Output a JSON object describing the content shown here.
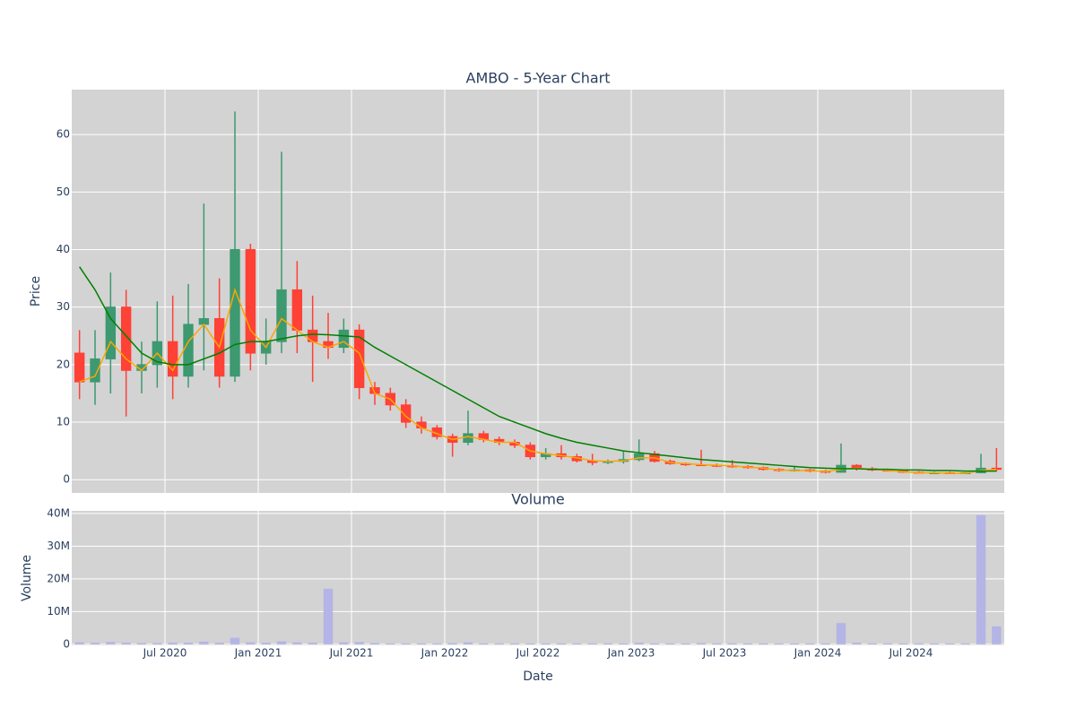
{
  "chart_data": [
    {
      "type": "candlestick",
      "title": "AMBO - 5-Year Chart",
      "y_label": "Price",
      "x": [
        "2020-01",
        "2020-02",
        "2020-03",
        "2020-04",
        "2020-05",
        "2020-06",
        "2020-07",
        "2020-08",
        "2020-09",
        "2020-10",
        "2020-11",
        "2020-12",
        "2021-01",
        "2021-02",
        "2021-03",
        "2021-04",
        "2021-05",
        "2021-06",
        "2021-07",
        "2021-08",
        "2021-09",
        "2021-10",
        "2021-11",
        "2021-12",
        "2022-01",
        "2022-02",
        "2022-03",
        "2022-04",
        "2022-05",
        "2022-06",
        "2022-07",
        "2022-08",
        "2022-09",
        "2022-10",
        "2022-11",
        "2022-12",
        "2023-01",
        "2023-02",
        "2023-03",
        "2023-04",
        "2023-05",
        "2023-06",
        "2023-07",
        "2023-08",
        "2023-09",
        "2023-10",
        "2023-11",
        "2023-12",
        "2024-01",
        "2024-02",
        "2024-03",
        "2024-04",
        "2024-05",
        "2024-06",
        "2024-07",
        "2024-08",
        "2024-09",
        "2024-10",
        "2024-11",
        "2024-12"
      ],
      "open": [
        22,
        17,
        21,
        30,
        19,
        20,
        24,
        18,
        27,
        28,
        18,
        40,
        22,
        24,
        33,
        26,
        24,
        23,
        26,
        16,
        15,
        13,
        10,
        9,
        7.5,
        6.5,
        8,
        7,
        6.5,
        6,
        4,
        4.5,
        4,
        3.3,
        3,
        3.2,
        3.5,
        4.5,
        3.2,
        2.8,
        2.6,
        2.5,
        2.4,
        2.3,
        2.1,
        1.8,
        1.6,
        1.7,
        1.5,
        1.3,
        2.5,
        1.9,
        1.7,
        1.5,
        1.3,
        1.2,
        1.2,
        1.1,
        1.2,
        2
      ],
      "high": [
        26,
        26,
        36,
        33,
        24,
        31,
        32,
        34,
        48,
        35,
        64,
        41,
        28,
        57,
        38,
        32,
        29,
        28,
        27,
        17,
        16,
        14,
        11,
        9.5,
        8,
        12,
        8.5,
        7.5,
        7,
        6.5,
        5.5,
        6,
        4.5,
        4.5,
        3.5,
        5,
        7,
        5,
        3.5,
        3,
        5.2,
        2.8,
        3.4,
        2.5,
        2.3,
        2,
        2.4,
        1.9,
        1.7,
        6.3,
        2.7,
        2.2,
        1.9,
        1.7,
        1.5,
        1.4,
        1.4,
        1.3,
        4.5,
        5.5
      ],
      "low": [
        14,
        13,
        15,
        11,
        15,
        16,
        14,
        16,
        19,
        16,
        17,
        19,
        20,
        22,
        22,
        17,
        21,
        22,
        14,
        13,
        12,
        9,
        8,
        7,
        4,
        6,
        6.5,
        6,
        5.5,
        3.5,
        3.5,
        3.5,
        3,
        2.5,
        2.7,
        2.8,
        3.2,
        3,
        2.6,
        2.4,
        2.4,
        2.2,
        2.1,
        1.9,
        1.6,
        1.4,
        1.4,
        1.3,
        1.1,
        1.2,
        1.6,
        1.5,
        1.4,
        1.2,
        1.1,
        1,
        1,
        1,
        1.2,
        1.4
      ],
      "close": [
        17,
        21,
        30,
        19,
        20,
        24,
        18,
        27,
        28,
        18,
        40,
        22,
        24,
        33,
        26,
        24,
        23,
        26,
        16,
        15,
        13,
        10,
        9,
        7.5,
        6.5,
        8,
        7,
        6.5,
        6,
        4,
        4.5,
        4,
        3.3,
        3,
        3.2,
        3.5,
        4.5,
        3.2,
        2.8,
        2.6,
        2.5,
        2.4,
        2.3,
        2.1,
        1.8,
        1.6,
        1.7,
        1.5,
        1.3,
        2.5,
        1.9,
        1.7,
        1.5,
        1.3,
        1.2,
        1.2,
        1.1,
        1.2,
        2,
        1.8
      ],
      "increasing_color": "#3d9970",
      "decreasing_color": "#ff4136",
      "lines": [
        {
          "color": "#ffa500",
          "values": [
            17,
            18,
            24,
            21,
            19,
            22,
            19,
            24,
            27,
            23,
            33,
            26,
            23,
            28,
            26,
            24,
            23,
            24,
            22,
            15,
            14,
            11,
            9,
            8,
            7,
            7.5,
            7,
            6.5,
            6.5,
            5,
            4.5,
            4.2,
            3.8,
            3.3,
            3.2,
            3.3,
            3.8,
            3.8,
            3,
            2.8,
            2.6,
            2.5,
            2.4,
            2.2,
            2,
            1.7,
            1.6,
            1.6,
            1.4,
            1.8,
            2,
            1.8,
            1.6,
            1.4,
            1.2,
            1.2,
            1.1,
            1.1,
            1.6,
            1.8
          ]
        },
        {
          "color": "#008000",
          "values": [
            37,
            33,
            28,
            25,
            22,
            20.5,
            20,
            20,
            21,
            22,
            23.5,
            24,
            24,
            24.5,
            25,
            25.3,
            25.2,
            25,
            24.8,
            23,
            21.5,
            20,
            18.5,
            17,
            15.5,
            14,
            12.5,
            11,
            10,
            9,
            8,
            7.2,
            6.5,
            6,
            5.5,
            5,
            4.7,
            4.4,
            4.1,
            3.8,
            3.5,
            3.3,
            3.1,
            2.9,
            2.7,
            2.5,
            2.3,
            2.1,
            2,
            1.9,
            1.9,
            1.8,
            1.8,
            1.7,
            1.7,
            1.6,
            1.6,
            1.5,
            1.5,
            1.5
          ]
        }
      ],
      "xlim": [
        "2020-01",
        "2025-01"
      ],
      "ylim": [
        -2.3,
        67.8
      ],
      "yticks": [
        0,
        10,
        20,
        30,
        40,
        50,
        60
      ],
      "grid": true
    },
    {
      "type": "bar",
      "title": "Volume",
      "x_label": "Date",
      "y_label": "Volume",
      "color": "#b4b4e6",
      "x": [
        "2020-01",
        "2020-02",
        "2020-03",
        "2020-04",
        "2020-05",
        "2020-06",
        "2020-07",
        "2020-08",
        "2020-09",
        "2020-10",
        "2020-11",
        "2020-12",
        "2021-01",
        "2021-02",
        "2021-03",
        "2021-04",
        "2021-05",
        "2021-06",
        "2021-07",
        "2021-08",
        "2021-09",
        "2021-10",
        "2021-11",
        "2021-12",
        "2022-01",
        "2022-02",
        "2022-03",
        "2022-04",
        "2022-05",
        "2022-06",
        "2022-07",
        "2022-08",
        "2022-09",
        "2022-10",
        "2022-11",
        "2022-12",
        "2023-01",
        "2023-02",
        "2023-03",
        "2023-04",
        "2023-05",
        "2023-06",
        "2023-07",
        "2023-08",
        "2023-09",
        "2023-10",
        "2023-11",
        "2023-12",
        "2024-01",
        "2024-02",
        "2024-03",
        "2024-04",
        "2024-05",
        "2024-06",
        "2024-07",
        "2024-08",
        "2024-09",
        "2024-10",
        "2024-11",
        "2024-12"
      ],
      "values": [
        600000,
        500000,
        700000,
        500000,
        400000,
        400000,
        500000,
        500000,
        800000,
        500000,
        2000000,
        600000,
        500000,
        900000,
        600000,
        500000,
        17000000,
        600000,
        700000,
        400000,
        300000,
        300000,
        300000,
        300000,
        400000,
        600000,
        300000,
        300000,
        300000,
        300000,
        300000,
        300000,
        300000,
        300000,
        300000,
        300000,
        500000,
        300000,
        300000,
        300000,
        400000,
        300000,
        300000,
        300000,
        300000,
        300000,
        300000,
        300000,
        300000,
        6500000,
        500000,
        300000,
        300000,
        300000,
        300000,
        300000,
        300000,
        300000,
        39500000,
        5500000
      ],
      "xlim": [
        "2020-01",
        "2025-01"
      ],
      "xticks": [
        {
          "value": "2020-07",
          "label": "Jul 2020"
        },
        {
          "value": "2021-01",
          "label": "Jan 2021"
        },
        {
          "value": "2021-07",
          "label": "Jul 2021"
        },
        {
          "value": "2022-01",
          "label": "Jan 2022"
        },
        {
          "value": "2022-07",
          "label": "Jul 2022"
        },
        {
          "value": "2023-01",
          "label": "Jan 2023"
        },
        {
          "value": "2023-07",
          "label": "Jul 2023"
        },
        {
          "value": "2024-01",
          "label": "Jan 2024"
        },
        {
          "value": "2024-07",
          "label": "Jul 2024"
        }
      ],
      "ylim": [
        -300000,
        40800000
      ],
      "yticks": [
        0,
        {
          "value": 10000000,
          "label": "10M"
        },
        {
          "value": 20000000,
          "label": "20M"
        },
        {
          "value": 30000000,
          "label": "30M"
        },
        {
          "value": 40000000,
          "label": "40M"
        }
      ],
      "grid": true
    }
  ]
}
